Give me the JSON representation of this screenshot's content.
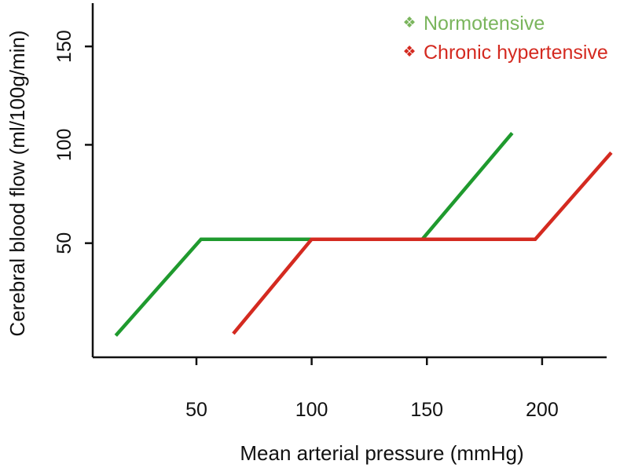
{
  "chart_data": {
    "type": "line",
    "title": "",
    "xlabel": "Mean arterial pressure (mmHg)",
    "ylabel": "Cerebral blood flow (ml/100g/min)",
    "xlim": [
      5,
      228
    ],
    "ylim": [
      -8,
      172
    ],
    "xticks": [
      50,
      100,
      150,
      200
    ],
    "yticks": [
      50,
      100,
      150
    ],
    "grid": false,
    "legend": "top-right",
    "legend_marker": "❖",
    "series": [
      {
        "name": "Normotensive",
        "color": "#1f9a2e",
        "legend_color": "#7ab55c",
        "x": [
          15,
          52,
          148,
          187
        ],
        "y": [
          3,
          52,
          52,
          106
        ]
      },
      {
        "name": "Chronic hypertensive",
        "color": "#d42a20",
        "legend_color": "#d42a20",
        "x": [
          66,
          100,
          197,
          230
        ],
        "y": [
          4,
          52,
          52,
          96
        ]
      }
    ]
  }
}
